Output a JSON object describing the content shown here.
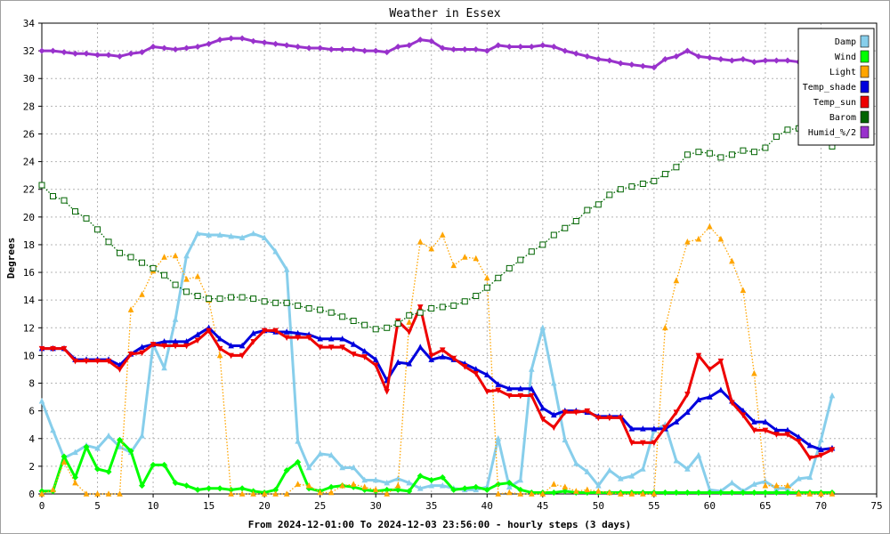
{
  "chart_data": {
    "type": "line",
    "title": "Weather in Essex",
    "xlabel": "From 2024-12-01:00 To 2024-12-03 23:56:00 - hourly steps (3 days)",
    "ylabel": "Degrees",
    "xlim": [
      0,
      75
    ],
    "ylim": [
      0,
      34
    ],
    "xticks": [
      0,
      5,
      10,
      15,
      20,
      25,
      30,
      35,
      40,
      45,
      50,
      55,
      60,
      65,
      70,
      75
    ],
    "yticks": [
      0,
      2,
      4,
      6,
      8,
      10,
      12,
      14,
      16,
      18,
      20,
      22,
      24,
      26,
      28,
      30,
      32,
      34
    ],
    "grid": true,
    "legend_position": "top-right",
    "x": [
      0,
      1,
      2,
      3,
      4,
      5,
      6,
      7,
      8,
      9,
      10,
      11,
      12,
      13,
      14,
      15,
      16,
      17,
      18,
      19,
      20,
      21,
      22,
      23,
      24,
      25,
      26,
      27,
      28,
      29,
      30,
      31,
      32,
      33,
      34,
      35,
      36,
      37,
      38,
      39,
      40,
      41,
      42,
      43,
      44,
      45,
      46,
      47,
      48,
      49,
      50,
      51,
      52,
      53,
      54,
      55,
      56,
      57,
      58,
      59,
      60,
      61,
      62,
      63,
      64,
      65,
      66,
      67,
      68,
      69,
      70,
      71
    ],
    "series": [
      {
        "name": "Damp",
        "color": "#87ceeb",
        "style": "solid",
        "marker": "triangle",
        "values": [
          6.7,
          4.6,
          2.6,
          3.0,
          3.5,
          3.3,
          4.2,
          3.4,
          3.0,
          4.2,
          10.8,
          9.1,
          12.6,
          17.2,
          18.8,
          18.7,
          18.7,
          18.6,
          18.5,
          18.8,
          18.5,
          17.5,
          16.2,
          3.8,
          1.9,
          2.9,
          2.8,
          1.9,
          1.9,
          1.0,
          1.0,
          0.8,
          1.1,
          0.8,
          0.4,
          0.6,
          0.6,
          0.4,
          0.3,
          0.3,
          0.5,
          4.0,
          0.5,
          1.0,
          9.0,
          12.0,
          8.0,
          3.9,
          2.2,
          1.6,
          0.6,
          1.7,
          1.1,
          1.3,
          1.8,
          4.6,
          5.0,
          2.4,
          1.8,
          2.8,
          0.3,
          0.2,
          0.8,
          0.2,
          0.7,
          0.9,
          0.4,
          0.4,
          1.1,
          1.2,
          3.9,
          7.1
        ]
      },
      {
        "name": "Wind",
        "color": "#00ff00",
        "style": "solid",
        "marker": "diamond",
        "values": [
          0.2,
          0.2,
          2.7,
          1.2,
          3.4,
          1.8,
          1.6,
          3.9,
          3.1,
          0.6,
          2.1,
          2.1,
          0.8,
          0.6,
          0.3,
          0.4,
          0.4,
          0.3,
          0.4,
          0.2,
          0.1,
          0.3,
          1.7,
          2.3,
          0.4,
          0.2,
          0.5,
          0.6,
          0.5,
          0.3,
          0.2,
          0.3,
          0.3,
          0.2,
          1.3,
          1.0,
          1.2,
          0.3,
          0.4,
          0.5,
          0.3,
          0.7,
          0.8,
          0.3,
          0.1,
          0.1,
          0.1,
          0.2,
          0.1,
          0.1,
          0.1,
          0.1,
          0.1,
          0.1,
          0.1,
          0.1,
          0.1,
          0.1,
          0.1,
          0.1,
          0.1,
          0.1,
          0.1,
          0.1,
          0.1,
          0.1,
          0.1,
          0.1,
          0.1,
          0.1,
          0.1,
          0.1
        ]
      },
      {
        "name": "Light",
        "color": "#ffa500",
        "style": "dotted",
        "marker": "triangle",
        "values": [
          0,
          0.3,
          2.3,
          0.8,
          0,
          0,
          0,
          0,
          13.3,
          14.4,
          16.1,
          17.1,
          17.2,
          15.5,
          15.7,
          14.0,
          10.0,
          0,
          0,
          0,
          0,
          0,
          0,
          0.7,
          0.6,
          0.1,
          0.1,
          0.6,
          0.7,
          0.5,
          0.3,
          0,
          0.6,
          12.4,
          18.2,
          17.7,
          18.7,
          16.5,
          17.1,
          17.0,
          15.6,
          0,
          0.1,
          0,
          0,
          0,
          0.7,
          0.5,
          0.2,
          0.3,
          0.2,
          0.1,
          0,
          0,
          0,
          0,
          12.0,
          15.4,
          18.2,
          18.4,
          19.3,
          18.4,
          16.8,
          14.7,
          8.7,
          0.6,
          0.6,
          0.6,
          0,
          0,
          0,
          0
        ]
      },
      {
        "name": "Temp_shade",
        "color": "#0000dd",
        "style": "solid",
        "marker": "triangle",
        "values": [
          10.5,
          10.5,
          10.5,
          9.7,
          9.7,
          9.7,
          9.7,
          9.3,
          10.1,
          10.6,
          10.8,
          11.0,
          11.0,
          11.0,
          11.5,
          12.0,
          11.2,
          10.7,
          10.7,
          11.6,
          11.8,
          11.7,
          11.7,
          11.6,
          11.5,
          11.2,
          11.2,
          11.2,
          10.8,
          10.3,
          9.7,
          8.2,
          9.5,
          9.4,
          10.6,
          9.7,
          9.9,
          9.7,
          9.4,
          9.0,
          8.6,
          7.9,
          7.6,
          7.6,
          7.6,
          6.2,
          5.7,
          6.0,
          6.0,
          5.9,
          5.6,
          5.6,
          5.6,
          4.7,
          4.7,
          4.7,
          4.7,
          5.2,
          5.9,
          6.8,
          7.0,
          7.5,
          6.7,
          6.0,
          5.2,
          5.2,
          4.6,
          4.6,
          4.1,
          3.5,
          3.2,
          3.3
        ]
      },
      {
        "name": "Temp_sun",
        "color": "#ee0000",
        "style": "solid",
        "marker": "inverted-triangle",
        "values": [
          10.5,
          10.5,
          10.5,
          9.6,
          9.6,
          9.6,
          9.6,
          9.0,
          10.1,
          10.2,
          10.8,
          10.7,
          10.7,
          10.7,
          11.1,
          11.8,
          10.5,
          10.0,
          10.0,
          11.0,
          11.8,
          11.8,
          11.3,
          11.3,
          11.3,
          10.6,
          10.6,
          10.6,
          10.1,
          9.9,
          9.3,
          7.4,
          12.5,
          11.7,
          13.5,
          10.0,
          10.4,
          9.8,
          9.2,
          8.7,
          7.4,
          7.5,
          7.1,
          7.1,
          7.1,
          5.4,
          4.8,
          5.9,
          5.9,
          6.0,
          5.5,
          5.5,
          5.5,
          3.7,
          3.7,
          3.7,
          4.8,
          5.9,
          7.2,
          10.0,
          9.0,
          9.6,
          6.6,
          5.7,
          4.6,
          4.6,
          4.3,
          4.3,
          3.8,
          2.6,
          2.8,
          3.2
        ]
      },
      {
        "name": "Barom",
        "color": "#006400",
        "style": "dotted",
        "marker": "square",
        "values": [
          22.3,
          21.5,
          21.2,
          20.4,
          19.9,
          19.1,
          18.2,
          17.4,
          17.1,
          16.7,
          16.3,
          15.8,
          15.1,
          14.6,
          14.3,
          14.1,
          14.1,
          14.2,
          14.2,
          14.1,
          13.9,
          13.8,
          13.8,
          13.6,
          13.4,
          13.3,
          13.1,
          12.8,
          12.5,
          12.2,
          11.9,
          12.0,
          12.3,
          12.9,
          13.1,
          13.4,
          13.5,
          13.6,
          13.9,
          14.3,
          14.9,
          15.6,
          16.3,
          16.9,
          17.5,
          18.0,
          18.7,
          19.2,
          19.7,
          20.5,
          20.9,
          21.6,
          22.0,
          22.2,
          22.4,
          22.6,
          23.1,
          23.6,
          24.5,
          24.7,
          24.6,
          24.3,
          24.5,
          24.8,
          24.7,
          25.0,
          25.8,
          26.3,
          26.4,
          26.2,
          25.5,
          25.1
        ]
      },
      {
        "name": "Humid_%/2",
        "color": "#9932cc",
        "style": "solid",
        "marker": "diamond",
        "values": [
          32.0,
          32.0,
          31.9,
          31.8,
          31.8,
          31.7,
          31.7,
          31.6,
          31.8,
          31.9,
          32.3,
          32.2,
          32.1,
          32.2,
          32.3,
          32.5,
          32.8,
          32.9,
          32.9,
          32.7,
          32.6,
          32.5,
          32.4,
          32.3,
          32.2,
          32.2,
          32.1,
          32.1,
          32.1,
          32.0,
          32.0,
          31.9,
          32.3,
          32.4,
          32.8,
          32.7,
          32.2,
          32.1,
          32.1,
          32.1,
          32.0,
          32.4,
          32.3,
          32.3,
          32.3,
          32.4,
          32.3,
          32.0,
          31.8,
          31.6,
          31.4,
          31.3,
          31.1,
          31.0,
          30.9,
          30.8,
          31.4,
          31.6,
          32.0,
          31.6,
          31.5,
          31.4,
          31.3,
          31.4,
          31.2,
          31.3,
          31.3,
          31.3,
          31.2,
          31.3,
          31.3,
          31.2
        ]
      }
    ]
  }
}
